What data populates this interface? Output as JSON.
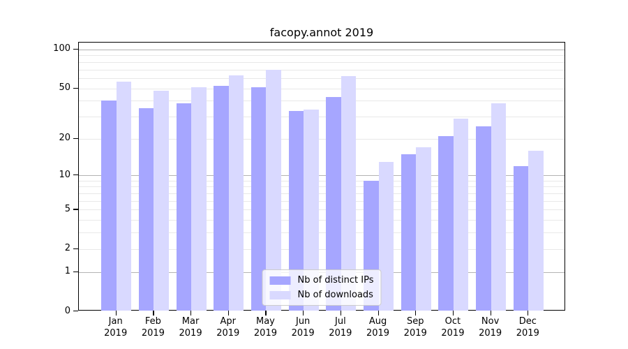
{
  "chart_data": {
    "type": "bar",
    "title": "facopy.annot 2019",
    "categories": [
      {
        "month": "Jan",
        "year": "2019"
      },
      {
        "month": "Feb",
        "year": "2019"
      },
      {
        "month": "Mar",
        "year": "2019"
      },
      {
        "month": "Apr",
        "year": "2019"
      },
      {
        "month": "May",
        "year": "2019"
      },
      {
        "month": "Jun",
        "year": "2019"
      },
      {
        "month": "Jul",
        "year": "2019"
      },
      {
        "month": "Aug",
        "year": "2019"
      },
      {
        "month": "Sep",
        "year": "2019"
      },
      {
        "month": "Oct",
        "year": "2019"
      },
      {
        "month": "Nov",
        "year": "2019"
      },
      {
        "month": "Dec",
        "year": "2019"
      }
    ],
    "series": [
      {
        "name": "Nb of distinct IPs",
        "color": "#a6a6ff",
        "values": [
          40,
          35,
          38,
          52,
          51,
          33,
          43,
          9,
          15,
          21,
          25,
          12
        ]
      },
      {
        "name": "Nb of downloads",
        "color": "#d9d9ff",
        "values": [
          56,
          48,
          51,
          63,
          70,
          34,
          62,
          13,
          17,
          29,
          38,
          16
        ]
      }
    ],
    "yscale": "log1p",
    "yticks": [
      100,
      50,
      20,
      10,
      5,
      2,
      1,
      0
    ],
    "yticks_minor": [
      2,
      3,
      4,
      5,
      6,
      7,
      8,
      9,
      20,
      30,
      40,
      50,
      60,
      70,
      80,
      90
    ],
    "ylim": [
      0,
      113
    ],
    "xlim": [
      0,
      13
    ],
    "xlabel": "",
    "ylabel": "",
    "grid": "on",
    "legend_position": "lower center",
    "colors": {
      "grid_major": "#b3b3b3",
      "grid_minor": "#e8e8e8",
      "spine": "#000000",
      "background": "#ffffff"
    }
  }
}
